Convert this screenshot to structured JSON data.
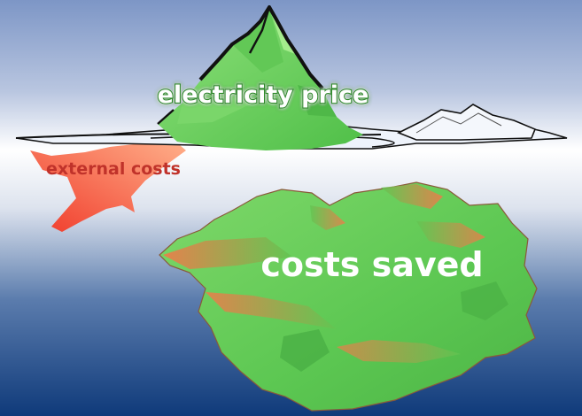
{
  "labels": {
    "electricity_price": "electricity price",
    "external_costs": "external costs",
    "costs_saved": "costs saved"
  },
  "colors": {
    "sky_top": "#7f98c8",
    "horizon": "#ffffff",
    "deep_water": "#123e7e",
    "iceberg_green": "#6fcf5f",
    "iceberg_dark_green": "#3ea93a",
    "external_red": "#f2553a",
    "external_text": "#c0322a",
    "outline": "#111111"
  }
}
